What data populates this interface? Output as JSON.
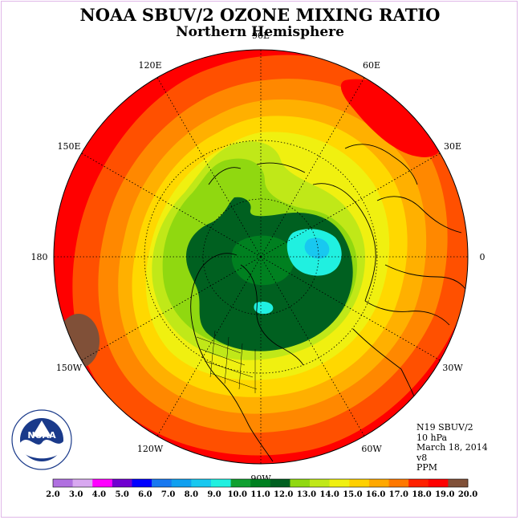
{
  "header": {
    "title": "NOAA SBUV/2 OZONE MIXING RATIO",
    "subtitle": "Northern Hemisphere"
  },
  "map": {
    "projection": "north-polar-stereographic",
    "longitude_labels": [
      {
        "text": "90E",
        "lon": 90
      },
      {
        "text": "60E",
        "lon": 60
      },
      {
        "text": "30E",
        "lon": 30
      },
      {
        "text": "0",
        "lon": 0
      },
      {
        "text": "30W",
        "lon": -30
      },
      {
        "text": "60W",
        "lon": -60
      },
      {
        "text": "90W",
        "lon": -90
      },
      {
        "text": "120W",
        "lon": -120
      },
      {
        "text": "150W",
        "lon": -150
      },
      {
        "text": "180",
        "lon": 180
      },
      {
        "text": "150E",
        "lon": 150
      },
      {
        "text": "120E",
        "lon": 120
      }
    ],
    "ocean_color": "#ff0000"
  },
  "info": {
    "lines": [
      "N19 SBUV/2",
      "10 hPa",
      "March 18, 2014",
      "v8",
      "PPM"
    ]
  },
  "colorbar": {
    "ticks": [
      "2.0",
      "3.0",
      "4.0",
      "5.0",
      "6.0",
      "7.0",
      "8.0",
      "9.0",
      "10.0",
      "11.0",
      "12.0",
      "13.0",
      "14.0",
      "15.0",
      "16.0",
      "17.0",
      "18.0",
      "19.0",
      "20.0"
    ],
    "colors": [
      "#b070e0",
      "#d8a8f0",
      "#ff00ff",
      "#7000d0",
      "#0000ff",
      "#1878f0",
      "#10a0f0",
      "#18c8f0",
      "#20f0e0",
      "#10a030",
      "#008020",
      "#006020",
      "#90d810",
      "#c0e818",
      "#f0f010",
      "#ffd000",
      "#ffa800",
      "#ff7800",
      "#ff2000",
      "#ff0000",
      "#805038"
    ]
  },
  "legend": {
    "logo_text": "NOAA"
  }
}
